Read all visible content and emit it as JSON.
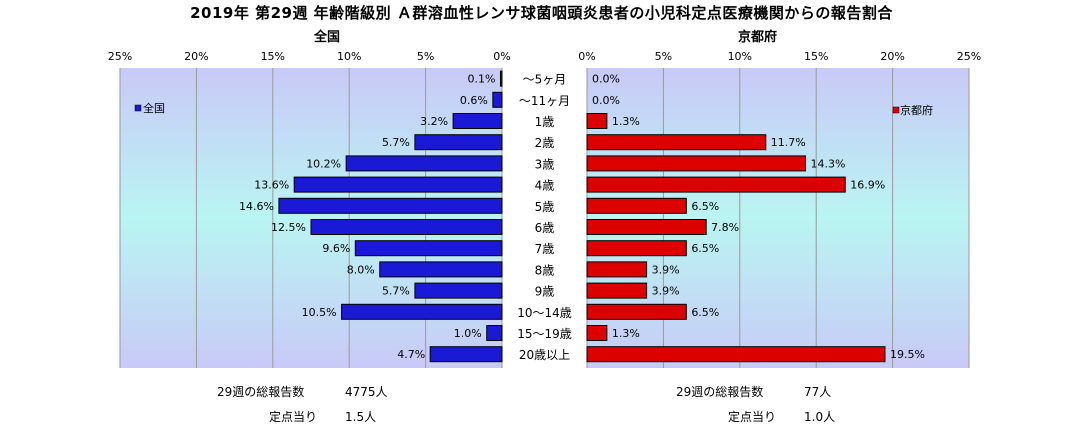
{
  "title": "2019年 第29週 年齢階級別 Ａ群溶血性レンサ球菌咽頭炎患者の小児科定点医療機関からの報告割合",
  "colors": {
    "zenkoku_bar": "#1a1ad6",
    "kyoto_bar": "#dd0000",
    "plot_bg_top": "#c9c9f7",
    "plot_bg_mid": "#b9f5f2"
  },
  "chart_data": {
    "type": "bar",
    "categories": [
      "～5ヶ月",
      "～11ヶ月",
      "1歳",
      "2歳",
      "3歳",
      "4歳",
      "5歳",
      "6歳",
      "7歳",
      "8歳",
      "9歳",
      "10～14歳",
      "15～19歳",
      "20歳以上"
    ],
    "axis_ticks": [
      "25%",
      "20%",
      "15%",
      "10%",
      "5%",
      "0%"
    ],
    "axis_ticks_right": [
      "0%",
      "5%",
      "10%",
      "15%",
      "20%",
      "25%"
    ],
    "xlim": [
      0,
      25
    ],
    "series": [
      {
        "name": "全国",
        "panel_title": "全国",
        "values": [
          0.1,
          0.6,
          3.2,
          5.7,
          10.2,
          13.6,
          14.6,
          12.5,
          9.6,
          8.0,
          5.7,
          10.5,
          1.0,
          4.7
        ],
        "labels": [
          "0.1%",
          "0.6%",
          "3.2%",
          "5.7%",
          "10.2%",
          "13.6%",
          "14.6%",
          "12.5%",
          "9.6%",
          "8.0%",
          "5.7%",
          "10.5%",
          "1.0%",
          "4.7%"
        ]
      },
      {
        "name": "京都府",
        "panel_title": "京都府",
        "values": [
          0.0,
          0.0,
          1.3,
          11.7,
          14.3,
          16.9,
          6.5,
          7.8,
          6.5,
          3.9,
          3.9,
          6.5,
          1.3,
          19.5
        ],
        "labels": [
          "0.0%",
          "0.0%",
          "1.3%",
          "11.7%",
          "14.3%",
          "16.9%",
          "6.5%",
          "7.8%",
          "6.5%",
          "3.9%",
          "3.9%",
          "6.5%",
          "1.3%",
          "19.5%"
        ]
      }
    ]
  },
  "summary": {
    "left": {
      "total_label": "29週の総報告数",
      "total_value": "4775人",
      "per_label": "定点当り",
      "per_value": "1.5人"
    },
    "right": {
      "total_label": "29週の総報告数",
      "total_value": "77人",
      "per_label": "定点当り",
      "per_value": "1.0人"
    }
  }
}
